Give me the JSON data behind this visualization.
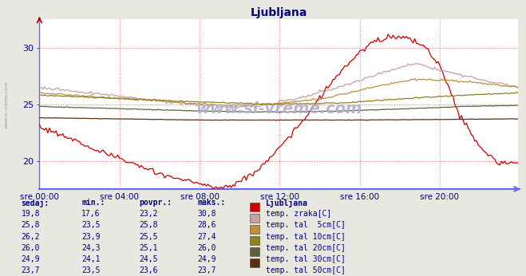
{
  "title": "Ljubljana",
  "title_color": "#000080",
  "bg_color": "#eeeee8",
  "plot_bg_color": "#ffffff",
  "x_ticks_labels": [
    "sre 00:00",
    "sre 04:00",
    "sre 08:00",
    "sre 12:00",
    "sre 16:00",
    "sre 20:00"
  ],
  "x_ticks_pos": [
    0,
    48,
    96,
    144,
    192,
    240
  ],
  "x_max": 287,
  "y_min": 17.5,
  "y_max": 32.5,
  "y_ticks": [
    20,
    25,
    30
  ],
  "grid_color": "#ff8888",
  "axis_color": "#6666ff",
  "watermark": "www.si-vreme.com",
  "legend_colors": [
    "#cc0000",
    "#c8a0a0",
    "#b89040",
    "#908020",
    "#606040",
    "#5a3010"
  ],
  "legend_labels": [
    "temp. zraka[C]",
    "temp. tal  5cm[C]",
    "temp. tal 10cm[C]",
    "temp. tal 20cm[C]",
    "temp. tal 30cm[C]",
    "temp. tal 50cm[C]"
  ],
  "table_headers": [
    "sedaj:",
    "min.:",
    "povpr.:",
    "maks.:"
  ],
  "table_data": [
    [
      "19,8",
      "17,6",
      "23,2",
      "30,8"
    ],
    [
      "25,8",
      "23,5",
      "25,8",
      "28,6"
    ],
    [
      "26,2",
      "23,9",
      "25,5",
      "27,4"
    ],
    [
      "26,0",
      "24,3",
      "25,1",
      "26,0"
    ],
    [
      "24,9",
      "24,1",
      "24,5",
      "24,9"
    ],
    [
      "23,7",
      "23,5",
      "23,6",
      "23,7"
    ]
  ],
  "left_label": "www.si-vreme.com"
}
